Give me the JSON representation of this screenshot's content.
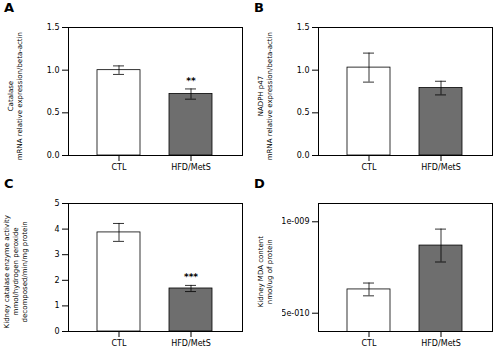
{
  "chart_data": [
    {
      "type": "bar",
      "title": "A",
      "ylabel": "Catalase\nmRNA relative expression/beta-actin",
      "categories": [
        "CTL",
        "HFD/MetS"
      ],
      "values": [
        1.0,
        0.72
      ],
      "errors": [
        0.05,
        0.06
      ],
      "colors": [
        "white",
        "#6e6e6e"
      ],
      "ylim": [
        0,
        1.5
      ],
      "yticks": [
        {
          "value": 0.0,
          "label": "0.0"
        },
        {
          "value": 0.5,
          "label": "0.5"
        },
        {
          "value": 1.0,
          "label": "1.0"
        },
        {
          "value": 1.5,
          "label": "1.5"
        }
      ],
      "annotations": [
        {
          "text": "**",
          "x": "HFD/MetS"
        }
      ]
    },
    {
      "type": "bar",
      "title": "B",
      "ylabel": "NADPH p47\nmRNA relative expression/beta-actin",
      "categories": [
        "CTL",
        "HFD/MetS"
      ],
      "values": [
        1.03,
        0.79
      ],
      "errors": [
        0.17,
        0.08
      ],
      "colors": [
        "white",
        "#6e6e6e"
      ],
      "ylim": [
        0,
        1.5
      ],
      "yticks": [
        {
          "value": 0.0,
          "label": "0.0"
        },
        {
          "value": 0.5,
          "label": "0.5"
        },
        {
          "value": 1.0,
          "label": "1.0"
        },
        {
          "value": 1.5,
          "label": "1.5"
        }
      ]
    },
    {
      "type": "bar",
      "title": "C",
      "ylabel": "Kidney catalase enzyme activity\nmmol/hydrogen peroxide\ndecomposed/min/mg protein",
      "categories": [
        "CTL",
        "HFD/MetS"
      ],
      "values": [
        3.87,
        1.68
      ],
      "errors": [
        0.35,
        0.12
      ],
      "colors": [
        "white",
        "#6e6e6e"
      ],
      "ylim": [
        0,
        5
      ],
      "yticks": [
        0,
        1,
        2,
        3,
        4,
        5
      ],
      "annotations": [
        {
          "text": "***",
          "x": "HFD/MetS"
        }
      ]
    },
    {
      "type": "bar",
      "title": "D",
      "ylabel": "Kidney MDA content\nnmol/ug of protein",
      "categories": [
        "CTL",
        "HFD/MetS"
      ],
      "values": [
        6.3e-10,
        8.7e-10
      ],
      "errors": [
        3.5e-11,
        9e-11
      ],
      "colors": [
        "white",
        "#6e6e6e"
      ],
      "ylim": [
        4e-10,
        1.1e-09
      ],
      "yticks": [
        {
          "value": 5e-10,
          "label": "5e-010"
        },
        {
          "value": 1e-09,
          "label": "1e-009"
        }
      ]
    }
  ]
}
